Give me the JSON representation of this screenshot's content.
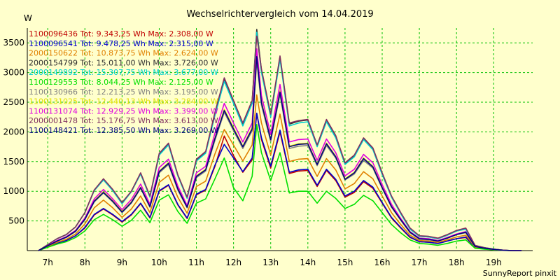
{
  "chart_data": {
    "type": "line",
    "title": "Wechselrichtervergleich vom 14.04.2019",
    "ylabel": "W",
    "footer": "SunnyReport pinxit",
    "ylim": [
      0,
      3750
    ],
    "xlim": [
      6.45,
      20.05
    ],
    "yticks": [
      500,
      1000,
      1500,
      2000,
      2500,
      3000,
      3500
    ],
    "xticks": [
      7,
      8,
      9,
      10,
      11,
      12,
      13,
      14,
      15,
      16,
      17,
      18,
      19
    ],
    "xtick_labels": [
      "7h",
      "8h",
      "9h",
      "10h",
      "11h",
      "12h",
      "13h",
      "14h",
      "15h",
      "16h",
      "17h",
      "18h",
      "19h"
    ],
    "grid": true,
    "legend_position": "top-left",
    "x": [
      6.75,
      7.0,
      7.25,
      7.5,
      7.75,
      8.0,
      8.25,
      8.5,
      8.75,
      9.0,
      9.25,
      9.5,
      9.75,
      10.0,
      10.25,
      10.5,
      10.75,
      11.0,
      11.25,
      11.5,
      11.75,
      12.0,
      12.25,
      12.5,
      12.625,
      12.75,
      13.0,
      13.25,
      13.5,
      13.75,
      14.0,
      14.25,
      14.5,
      14.75,
      15.0,
      15.25,
      15.5,
      15.75,
      16.0,
      16.25,
      16.5,
      16.75,
      17.0,
      17.25,
      17.5,
      17.75,
      18.0,
      18.25,
      18.5,
      18.75,
      19.0,
      19.25,
      19.5,
      19.75
    ],
    "series": [
      {
        "name": "1100096436 Tot: 9.343,25 Wh Max: 2.308,00 W",
        "color": "#c00000",
        "values": [
          0,
          60,
          120,
          170,
          250,
          380,
          600,
          700,
          600,
          480,
          600,
          790,
          550,
          1000,
          1100,
          770,
          540,
          940,
          1020,
          1420,
          1930,
          1600,
          1320,
          1530,
          2308,
          1870,
          1390,
          2000,
          1300,
          1340,
          1350,
          1080,
          1350,
          1180,
          900,
          980,
          1160,
          1050,
          800,
          550,
          380,
          220,
          150,
          140,
          120,
          160,
          200,
          220,
          50,
          30,
          15,
          5,
          0,
          0
        ]
      },
      {
        "name": "1100096541 Tot: 9.478,25 Wh Max: 2.315,00 W",
        "color": "#0000cc",
        "values": [
          0,
          60,
          120,
          170,
          250,
          390,
          610,
          710,
          610,
          490,
          610,
          800,
          560,
          1010,
          1110,
          780,
          550,
          950,
          1030,
          1440,
          1790,
          1560,
          1330,
          1560,
          2315,
          1900,
          1420,
          2030,
          1320,
          1360,
          1370,
          1100,
          1370,
          1200,
          920,
          1000,
          1180,
          1070,
          810,
          560,
          390,
          230,
          150,
          140,
          120,
          160,
          200,
          230,
          50,
          30,
          15,
          5,
          0,
          0
        ]
      },
      {
        "name": "2000150622 Tot: 10.873,75 Wh Max: 2.624,00 W",
        "color": "#e08000",
        "values": [
          0,
          70,
          140,
          190,
          280,
          450,
          720,
          850,
          720,
          560,
          700,
          920,
          640,
          1150,
          1270,
          900,
          630,
          1080,
          1170,
          1630,
          2040,
          1780,
          1510,
          1780,
          2624,
          2150,
          1610,
          2300,
          1500,
          1540,
          1550,
          1250,
          1550,
          1360,
          1040,
          1130,
          1330,
          1210,
          920,
          640,
          440,
          260,
          170,
          160,
          140,
          180,
          230,
          260,
          60,
          35,
          18,
          6,
          0,
          0
        ]
      },
      {
        "name": "2000154799 Tot: 15.011,00 Wh Max: 3.726,00 W",
        "color": "#303030",
        "values": [
          0,
          100,
          200,
          270,
          400,
          640,
          1020,
          1200,
          1020,
          800,
          1000,
          1300,
          910,
          1630,
          1800,
          1270,
          890,
          1530,
          1660,
          2310,
          2890,
          2510,
          2130,
          2510,
          3726,
          3040,
          2280,
          3260,
          2130,
          2180,
          2200,
          1770,
          2200,
          1930,
          1470,
          1600,
          1890,
          1720,
          1300,
          910,
          630,
          370,
          240,
          230,
          200,
          260,
          330,
          370,
          85,
          50,
          25,
          8,
          0,
          0
        ]
      },
      {
        "name": "2000149892 Tot: 15.307,75 Wh Max: 3.677,00 W",
        "color": "#00d0d0",
        "values": [
          0,
          100,
          200,
          270,
          400,
          640,
          1010,
          1190,
          1010,
          790,
          990,
          1290,
          900,
          1610,
          1780,
          1260,
          880,
          1510,
          1640,
          2280,
          2850,
          2480,
          2100,
          2480,
          3677,
          3000,
          2250,
          3220,
          2100,
          2150,
          2170,
          1750,
          2170,
          1900,
          1450,
          1580,
          1870,
          1700,
          1280,
          900,
          620,
          360,
          240,
          230,
          200,
          260,
          330,
          360,
          85,
          50,
          25,
          8,
          0,
          0
        ]
      },
      {
        "name": "1100129553 Tot: 8.044,25 Wh Max: 2.125,00 W",
        "color": "#00e000",
        "values": [
          0,
          55,
          110,
          150,
          220,
          330,
          520,
          610,
          520,
          410,
          510,
          680,
          470,
          850,
          940,
          660,
          460,
          800,
          870,
          1210,
          1560,
          1060,
          840,
          1250,
          2125,
          1650,
          1180,
          1650,
          970,
          1000,
          1000,
          800,
          1000,
          880,
          710,
          780,
          930,
          840,
          640,
          440,
          300,
          180,
          120,
          110,
          90,
          120,
          160,
          180,
          40,
          25,
          12,
          4,
          0,
          0
        ]
      },
      {
        "name": "1100130966 Tot: 12.213,25 Wh Max: 3.195,00 W",
        "color": "#808080",
        "values": [
          0,
          80,
          160,
          220,
          320,
          520,
          820,
          970,
          820,
          640,
          800,
          1050,
          730,
          1310,
          1450,
          1020,
          720,
          1230,
          1340,
          1860,
          2330,
          2020,
          1720,
          2020,
          3195,
          2450,
          1840,
          2630,
          1720,
          1760,
          1770,
          1430,
          1770,
          1560,
          1190,
          1290,
          1520,
          1390,
          1050,
          730,
          510,
          300,
          190,
          180,
          160,
          210,
          270,
          300,
          70,
          40,
          20,
          6,
          0,
          0
        ]
      },
      {
        "name": "1100131025 Tot: 12.440,13 Wh Max: 3.284,00 W",
        "color": "#e0e000",
        "values": [
          0,
          80,
          165,
          225,
          330,
          530,
          840,
          990,
          840,
          660,
          820,
          1070,
          750,
          1340,
          1480,
          1050,
          730,
          1260,
          1370,
          1900,
          2380,
          2070,
          1760,
          2070,
          3284,
          2510,
          1880,
          2690,
          1760,
          1800,
          1810,
          1460,
          1810,
          1590,
          1210,
          1320,
          1560,
          1420,
          1070,
          750,
          520,
          310,
          200,
          190,
          160,
          210,
          270,
          310,
          70,
          40,
          20,
          6,
          0,
          0
        ]
      },
      {
        "name": "1100131074 Tot: 12.929,25 Wh Max: 3.399,00 W",
        "color": "#e000e0",
        "values": [
          0,
          85,
          170,
          235,
          340,
          550,
          870,
          1030,
          870,
          690,
          860,
          1120,
          780,
          1400,
          1540,
          1090,
          760,
          1310,
          1420,
          1980,
          2480,
          2150,
          1830,
          2150,
          3399,
          2610,
          1960,
          2800,
          1830,
          1870,
          1880,
          1520,
          1880,
          1650,
          1260,
          1370,
          1620,
          1480,
          1110,
          780,
          540,
          320,
          210,
          200,
          170,
          220,
          280,
          320,
          75,
          42,
          21,
          7,
          0,
          0
        ]
      },
      {
        "name": "2000001478 Tot: 15.176,75 Wh Max: 3.613,00 W",
        "color": "#803060",
        "values": [
          0,
          100,
          200,
          270,
          400,
          640,
          1020,
          1210,
          1030,
          810,
          1000,
          1310,
          920,
          1640,
          1810,
          1280,
          900,
          1540,
          1670,
          2330,
          2910,
          2530,
          2150,
          2530,
          3613,
          3060,
          2300,
          3280,
          2150,
          2190,
          2210,
          1780,
          2210,
          1940,
          1480,
          1610,
          1900,
          1730,
          1310,
          920,
          640,
          380,
          250,
          240,
          210,
          270,
          340,
          380,
          88,
          50,
          25,
          8,
          0,
          0
        ]
      },
      {
        "name": "1100148421 Tot: 12.385,50 Wh Max: 3.269,00 W",
        "color": "#000080",
        "values": [
          0,
          80,
          160,
          225,
          330,
          530,
          830,
          980,
          830,
          650,
          810,
          1060,
          740,
          1330,
          1470,
          1040,
          730,
          1250,
          1360,
          1890,
          2360,
          2050,
          1750,
          2050,
          3269,
          2490,
          1870,
          2670,
          1750,
          1790,
          1800,
          1450,
          1800,
          1580,
          1200,
          1310,
          1550,
          1410,
          1060,
          740,
          520,
          310,
          200,
          190,
          160,
          210,
          270,
          310,
          70,
          40,
          20,
          6,
          0,
          0
        ]
      }
    ]
  }
}
